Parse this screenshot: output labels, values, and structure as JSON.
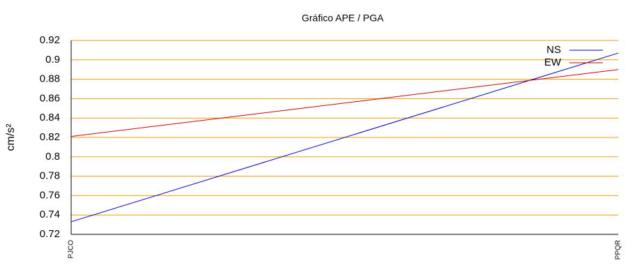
{
  "chart_data": {
    "type": "line",
    "title": "Gráfico  APE / PGA",
    "y_label": "cm/s²",
    "categories": [
      "PJCO",
      "PPQR"
    ],
    "series": [
      {
        "name": "NS",
        "color": "#0000cc",
        "values": [
          0.733,
          0.907
        ]
      },
      {
        "name": "EW",
        "color": "#cc0000",
        "values": [
          0.821,
          0.89
        ]
      }
    ],
    "ylim": [
      0.72,
      0.92
    ],
    "yticks": [
      0.72,
      0.74,
      0.76,
      0.78,
      0.8,
      0.82,
      0.84,
      0.86,
      0.88,
      0.9,
      0.92
    ],
    "grid": true,
    "grid_color": "#e8a000",
    "legend": "top-right"
  }
}
